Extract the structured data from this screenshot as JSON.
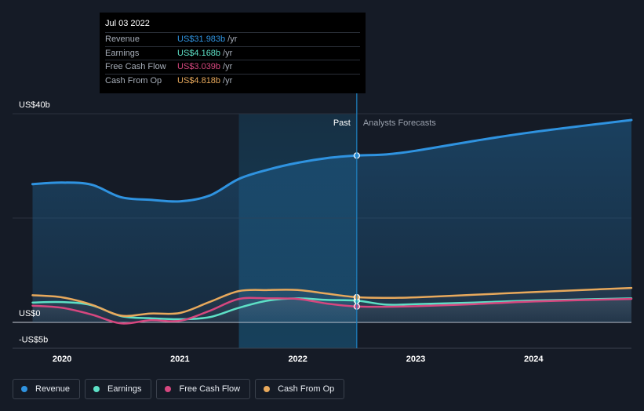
{
  "tooltip": {
    "date": "Jul 03 2022",
    "rows": [
      {
        "label": "Revenue",
        "value": "US$31.983b",
        "unit": "/yr",
        "color": "#2f93e0"
      },
      {
        "label": "Earnings",
        "value": "US$4.168b",
        "unit": "/yr",
        "color": "#5de0c6"
      },
      {
        "label": "Free Cash Flow",
        "value": "US$3.039b",
        "unit": "/yr",
        "color": "#d6477f"
      },
      {
        "label": "Cash From Op",
        "value": "US$4.818b",
        "unit": "/yr",
        "color": "#e8a95c"
      }
    ]
  },
  "labels": {
    "past": "Past",
    "forecast": "Analysts Forecasts"
  },
  "legend": [
    {
      "label": "Revenue",
      "color": "#2f93e0"
    },
    {
      "label": "Earnings",
      "color": "#5de0c6"
    },
    {
      "label": "Free Cash Flow",
      "color": "#d6477f"
    },
    {
      "label": "Cash From Op",
      "color": "#e8a95c"
    }
  ],
  "chart_data": {
    "type": "line",
    "ylim": [
      -5,
      40
    ],
    "xlim": [
      2019.58,
      2024.83
    ],
    "y_ticks": [
      {
        "value": 40,
        "label": "US$40b"
      },
      {
        "value": 0,
        "label": "US$0"
      },
      {
        "value": -5,
        "label": "-US$5b"
      }
    ],
    "x_ticks": [
      {
        "value": 2020,
        "label": "2020"
      },
      {
        "value": 2021,
        "label": "2021"
      },
      {
        "value": 2022,
        "label": "2022"
      },
      {
        "value": 2023,
        "label": "2023"
      },
      {
        "value": 2024,
        "label": "2024"
      }
    ],
    "past_start": 2021.5,
    "divider": 2022.5,
    "highlight_x": 2022.5,
    "series": [
      {
        "name": "Revenue",
        "color": "#2f93e0",
        "area": true,
        "points": [
          [
            2019.75,
            26.5
          ],
          [
            2020.0,
            26.8
          ],
          [
            2020.25,
            26.4
          ],
          [
            2020.5,
            24.0
          ],
          [
            2020.75,
            23.5
          ],
          [
            2021.0,
            23.2
          ],
          [
            2021.25,
            24.3
          ],
          [
            2021.5,
            27.5
          ],
          [
            2021.75,
            29.3
          ],
          [
            2022.0,
            30.6
          ],
          [
            2022.25,
            31.5
          ],
          [
            2022.5,
            31.98
          ],
          [
            2022.75,
            32.2
          ],
          [
            2023.0,
            32.9
          ],
          [
            2023.5,
            34.8
          ],
          [
            2024.0,
            36.5
          ],
          [
            2024.83,
            38.8
          ]
        ]
      },
      {
        "name": "Earnings",
        "color": "#5de0c6",
        "area": false,
        "points": [
          [
            2019.75,
            3.8
          ],
          [
            2020.0,
            3.9
          ],
          [
            2020.25,
            3.3
          ],
          [
            2020.5,
            1.2
          ],
          [
            2020.75,
            0.8
          ],
          [
            2021.0,
            0.6
          ],
          [
            2021.25,
            1.0
          ],
          [
            2021.5,
            2.8
          ],
          [
            2021.75,
            4.2
          ],
          [
            2022.0,
            4.6
          ],
          [
            2022.25,
            4.3
          ],
          [
            2022.5,
            4.17
          ],
          [
            2022.75,
            3.4
          ],
          [
            2023.0,
            3.5
          ],
          [
            2023.5,
            3.8
          ],
          [
            2024.0,
            4.2
          ],
          [
            2024.83,
            4.6
          ]
        ]
      },
      {
        "name": "Free Cash Flow",
        "color": "#d6477f",
        "area": false,
        "points": [
          [
            2019.75,
            3.2
          ],
          [
            2020.0,
            2.8
          ],
          [
            2020.25,
            1.5
          ],
          [
            2020.5,
            -0.2
          ],
          [
            2020.75,
            0.4
          ],
          [
            2021.0,
            0.3
          ],
          [
            2021.25,
            2.2
          ],
          [
            2021.5,
            4.5
          ],
          [
            2021.75,
            4.6
          ],
          [
            2022.0,
            4.5
          ],
          [
            2022.25,
            3.6
          ],
          [
            2022.5,
            3.04
          ],
          [
            2022.75,
            3.0
          ],
          [
            2023.0,
            3.1
          ],
          [
            2023.5,
            3.5
          ],
          [
            2024.0,
            4.0
          ],
          [
            2024.83,
            4.5
          ]
        ]
      },
      {
        "name": "Cash From Op",
        "color": "#e8a95c",
        "area": false,
        "points": [
          [
            2019.75,
            5.2
          ],
          [
            2020.0,
            4.8
          ],
          [
            2020.25,
            3.4
          ],
          [
            2020.5,
            1.3
          ],
          [
            2020.75,
            1.7
          ],
          [
            2021.0,
            1.8
          ],
          [
            2021.25,
            3.9
          ],
          [
            2021.5,
            6.0
          ],
          [
            2021.75,
            6.2
          ],
          [
            2022.0,
            6.2
          ],
          [
            2022.25,
            5.5
          ],
          [
            2022.5,
            4.82
          ],
          [
            2022.75,
            4.7
          ],
          [
            2023.0,
            4.8
          ],
          [
            2023.5,
            5.3
          ],
          [
            2024.0,
            5.8
          ],
          [
            2024.83,
            6.6
          ]
        ]
      }
    ]
  }
}
